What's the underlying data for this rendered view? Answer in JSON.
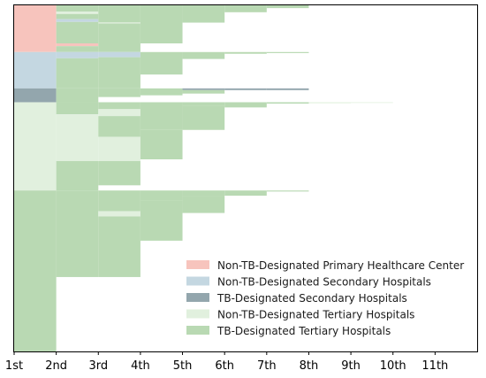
{
  "chart_data": {
    "type": "area",
    "title": "",
    "xlabel": "",
    "ylabel": "",
    "x_ticks": [
      "1st",
      "2nd",
      "3rd",
      "4th",
      "5th",
      "6th",
      "7th",
      "8th",
      "9th",
      "10th",
      "11th"
    ],
    "xlim": [
      1,
      12
    ],
    "ylim": [
      0,
      1
    ],
    "grid": false,
    "legend_placement": "lower-right",
    "categories": [
      {
        "name": "Non-TB-Designated Primary Healthcare Center",
        "color": "#f7c4bd"
      },
      {
        "name": "Non-TB-Designated Secondary Hospitals",
        "color": "#c4d7e1"
      },
      {
        "name": "TB-Designated Secondary Hospitals",
        "color": "#93a6ad"
      },
      {
        "name": "Non-TB-Designated Tertiary Hospitals",
        "color": "#e1f0de"
      },
      {
        "name": "TB-Designated Tertiary Hospitals",
        "color": "#b9d9b3"
      }
    ],
    "first_visit_shares": [
      {
        "category": "Non-TB-Designated Primary Healthcare Center",
        "start": 0.0,
        "end": 0.135
      },
      {
        "category": "Non-TB-Designated Secondary Hospitals",
        "start": 0.135,
        "end": 0.24
      },
      {
        "category": "TB-Designated Secondary Hospitals",
        "start": 0.24,
        "end": 0.28
      },
      {
        "category": "Non-TB-Designated Tertiary Hospitals",
        "start": 0.28,
        "end": 0.535
      },
      {
        "category": "TB-Designated Tertiary Hospitals",
        "start": 0.535,
        "end": 1.0
      }
    ],
    "flow_blocks": [
      {
        "visit": 2,
        "category": "TB-Designated Tertiary Hospitals",
        "start": 0.0,
        "end": 0.018
      },
      {
        "visit": 2,
        "category": "Non-TB-Designated Tertiary Hospitals",
        "start": 0.018,
        "end": 0.025
      },
      {
        "visit": 2,
        "category": "TB-Designated Tertiary Hospitals",
        "start": 0.025,
        "end": 0.04
      },
      {
        "visit": 2,
        "category": "Non-TB-Designated Secondary Hospitals",
        "start": 0.04,
        "end": 0.048
      },
      {
        "visit": 2,
        "category": "TB-Designated Tertiary Hospitals",
        "start": 0.048,
        "end": 0.11
      },
      {
        "visit": 2,
        "category": "Non-TB-Designated Primary Healthcare Center",
        "start": 0.11,
        "end": 0.118
      },
      {
        "visit": 2,
        "category": "TB-Designated Tertiary Hospitals",
        "start": 0.118,
        "end": 0.135
      },
      {
        "visit": 2,
        "category": "Non-TB-Designated Secondary Hospitals",
        "start": 0.135,
        "end": 0.153
      },
      {
        "visit": 2,
        "category": "TB-Designated Tertiary Hospitals",
        "start": 0.153,
        "end": 0.24
      },
      {
        "visit": 2,
        "category": "TB-Designated Tertiary Hospitals",
        "start": 0.24,
        "end": 0.28
      },
      {
        "visit": 2,
        "category": "TB-Designated Tertiary Hospitals",
        "start": 0.28,
        "end": 0.315
      },
      {
        "visit": 2,
        "category": "Non-TB-Designated Tertiary Hospitals",
        "start": 0.315,
        "end": 0.45
      },
      {
        "visit": 2,
        "category": "TB-Designated Tertiary Hospitals",
        "start": 0.45,
        "end": 0.535
      },
      {
        "visit": 2,
        "category": "TB-Designated Tertiary Hospitals",
        "start": 0.535,
        "end": 0.785
      },
      {
        "visit": 3,
        "category": "TB-Designated Tertiary Hospitals",
        "start": 0.0,
        "end": 0.05
      },
      {
        "visit": 3,
        "category": "TB-Designated Tertiary Hospitals",
        "start": 0.052,
        "end": 0.135
      },
      {
        "visit": 3,
        "category": "Non-TB-Designated Secondary Hospitals",
        "start": 0.135,
        "end": 0.15
      },
      {
        "visit": 3,
        "category": "TB-Designated Tertiary Hospitals",
        "start": 0.15,
        "end": 0.24
      },
      {
        "visit": 3,
        "category": "TB-Designated Tertiary Hospitals",
        "start": 0.24,
        "end": 0.265
      },
      {
        "visit": 3,
        "category": "TB-Designated Tertiary Hospitals",
        "start": 0.28,
        "end": 0.3
      },
      {
        "visit": 3,
        "category": "Non-TB-Designated Tertiary Hospitals",
        "start": 0.3,
        "end": 0.32
      },
      {
        "visit": 3,
        "category": "TB-Designated Tertiary Hospitals",
        "start": 0.32,
        "end": 0.38
      },
      {
        "visit": 3,
        "category": "Non-TB-Designated Tertiary Hospitals",
        "start": 0.38,
        "end": 0.45
      },
      {
        "visit": 3,
        "category": "TB-Designated Tertiary Hospitals",
        "start": 0.45,
        "end": 0.52
      },
      {
        "visit": 3,
        "category": "TB-Designated Tertiary Hospitals",
        "start": 0.535,
        "end": 0.595
      },
      {
        "visit": 3,
        "category": "Non-TB-Designated Tertiary Hospitals",
        "start": 0.595,
        "end": 0.61
      },
      {
        "visit": 3,
        "category": "TB-Designated Tertiary Hospitals",
        "start": 0.61,
        "end": 0.785
      },
      {
        "visit": 4,
        "category": "TB-Designated Tertiary Hospitals",
        "start": 0.0,
        "end": 0.11
      },
      {
        "visit": 4,
        "category": "TB-Designated Tertiary Hospitals",
        "start": 0.135,
        "end": 0.2
      },
      {
        "visit": 4,
        "category": "TB-Designated Tertiary Hospitals",
        "start": 0.24,
        "end": 0.26
      },
      {
        "visit": 4,
        "category": "TB-Designated Tertiary Hospitals",
        "start": 0.28,
        "end": 0.36
      },
      {
        "visit": 4,
        "category": "TB-Designated Tertiary Hospitals",
        "start": 0.36,
        "end": 0.445
      },
      {
        "visit": 4,
        "category": "TB-Designated Tertiary Hospitals",
        "start": 0.535,
        "end": 0.565
      },
      {
        "visit": 4,
        "category": "TB-Designated Tertiary Hospitals",
        "start": 0.565,
        "end": 0.68
      },
      {
        "visit": 5,
        "category": "TB-Designated Tertiary Hospitals",
        "start": 0.0,
        "end": 0.05
      },
      {
        "visit": 5,
        "category": "TB-Designated Tertiary Hospitals",
        "start": 0.135,
        "end": 0.155
      },
      {
        "visit": 5,
        "category": "TB-Designated Secondary Hospitals",
        "start": 0.24,
        "end": 0.245
      },
      {
        "visit": 5,
        "category": "TB-Designated Tertiary Hospitals",
        "start": 0.245,
        "end": 0.255
      },
      {
        "visit": 5,
        "category": "TB-Designated Tertiary Hospitals",
        "start": 0.28,
        "end": 0.29
      },
      {
        "visit": 5,
        "category": "TB-Designated Tertiary Hospitals",
        "start": 0.29,
        "end": 0.36
      },
      {
        "visit": 5,
        "category": "TB-Designated Tertiary Hospitals",
        "start": 0.535,
        "end": 0.55
      },
      {
        "visit": 5,
        "category": "TB-Designated Tertiary Hospitals",
        "start": 0.55,
        "end": 0.6
      },
      {
        "visit": 6,
        "category": "TB-Designated Tertiary Hospitals",
        "start": 0.0,
        "end": 0.02
      },
      {
        "visit": 6,
        "category": "TB-Designated Tertiary Hospitals",
        "start": 0.135,
        "end": 0.14
      },
      {
        "visit": 6,
        "category": "TB-Designated Secondary Hospitals",
        "start": 0.24,
        "end": 0.245
      },
      {
        "visit": 6,
        "category": "TB-Designated Tertiary Hospitals",
        "start": 0.28,
        "end": 0.295
      },
      {
        "visit": 6,
        "category": "TB-Designated Tertiary Hospitals",
        "start": 0.535,
        "end": 0.55
      },
      {
        "visit": 7,
        "category": "TB-Designated Tertiary Hospitals",
        "start": 0.0,
        "end": 0.008
      },
      {
        "visit": 7,
        "category": "TB-Designated Tertiary Hospitals",
        "start": 0.135,
        "end": 0.138
      },
      {
        "visit": 7,
        "category": "TB-Designated Secondary Hospitals",
        "start": 0.24,
        "end": 0.245
      },
      {
        "visit": 7,
        "category": "TB-Designated Tertiary Hospitals",
        "start": 0.28,
        "end": 0.284
      },
      {
        "visit": 7,
        "category": "TB-Designated Tertiary Hospitals",
        "start": 0.535,
        "end": 0.538
      },
      {
        "visit": 8,
        "category": "Non-TB-Designated Tertiary Hospitals",
        "start": 0.28,
        "end": 0.283
      },
      {
        "visit": 9,
        "category": "Non-TB-Designated Tertiary Hospitals",
        "start": 0.28,
        "end": 0.282
      }
    ]
  }
}
